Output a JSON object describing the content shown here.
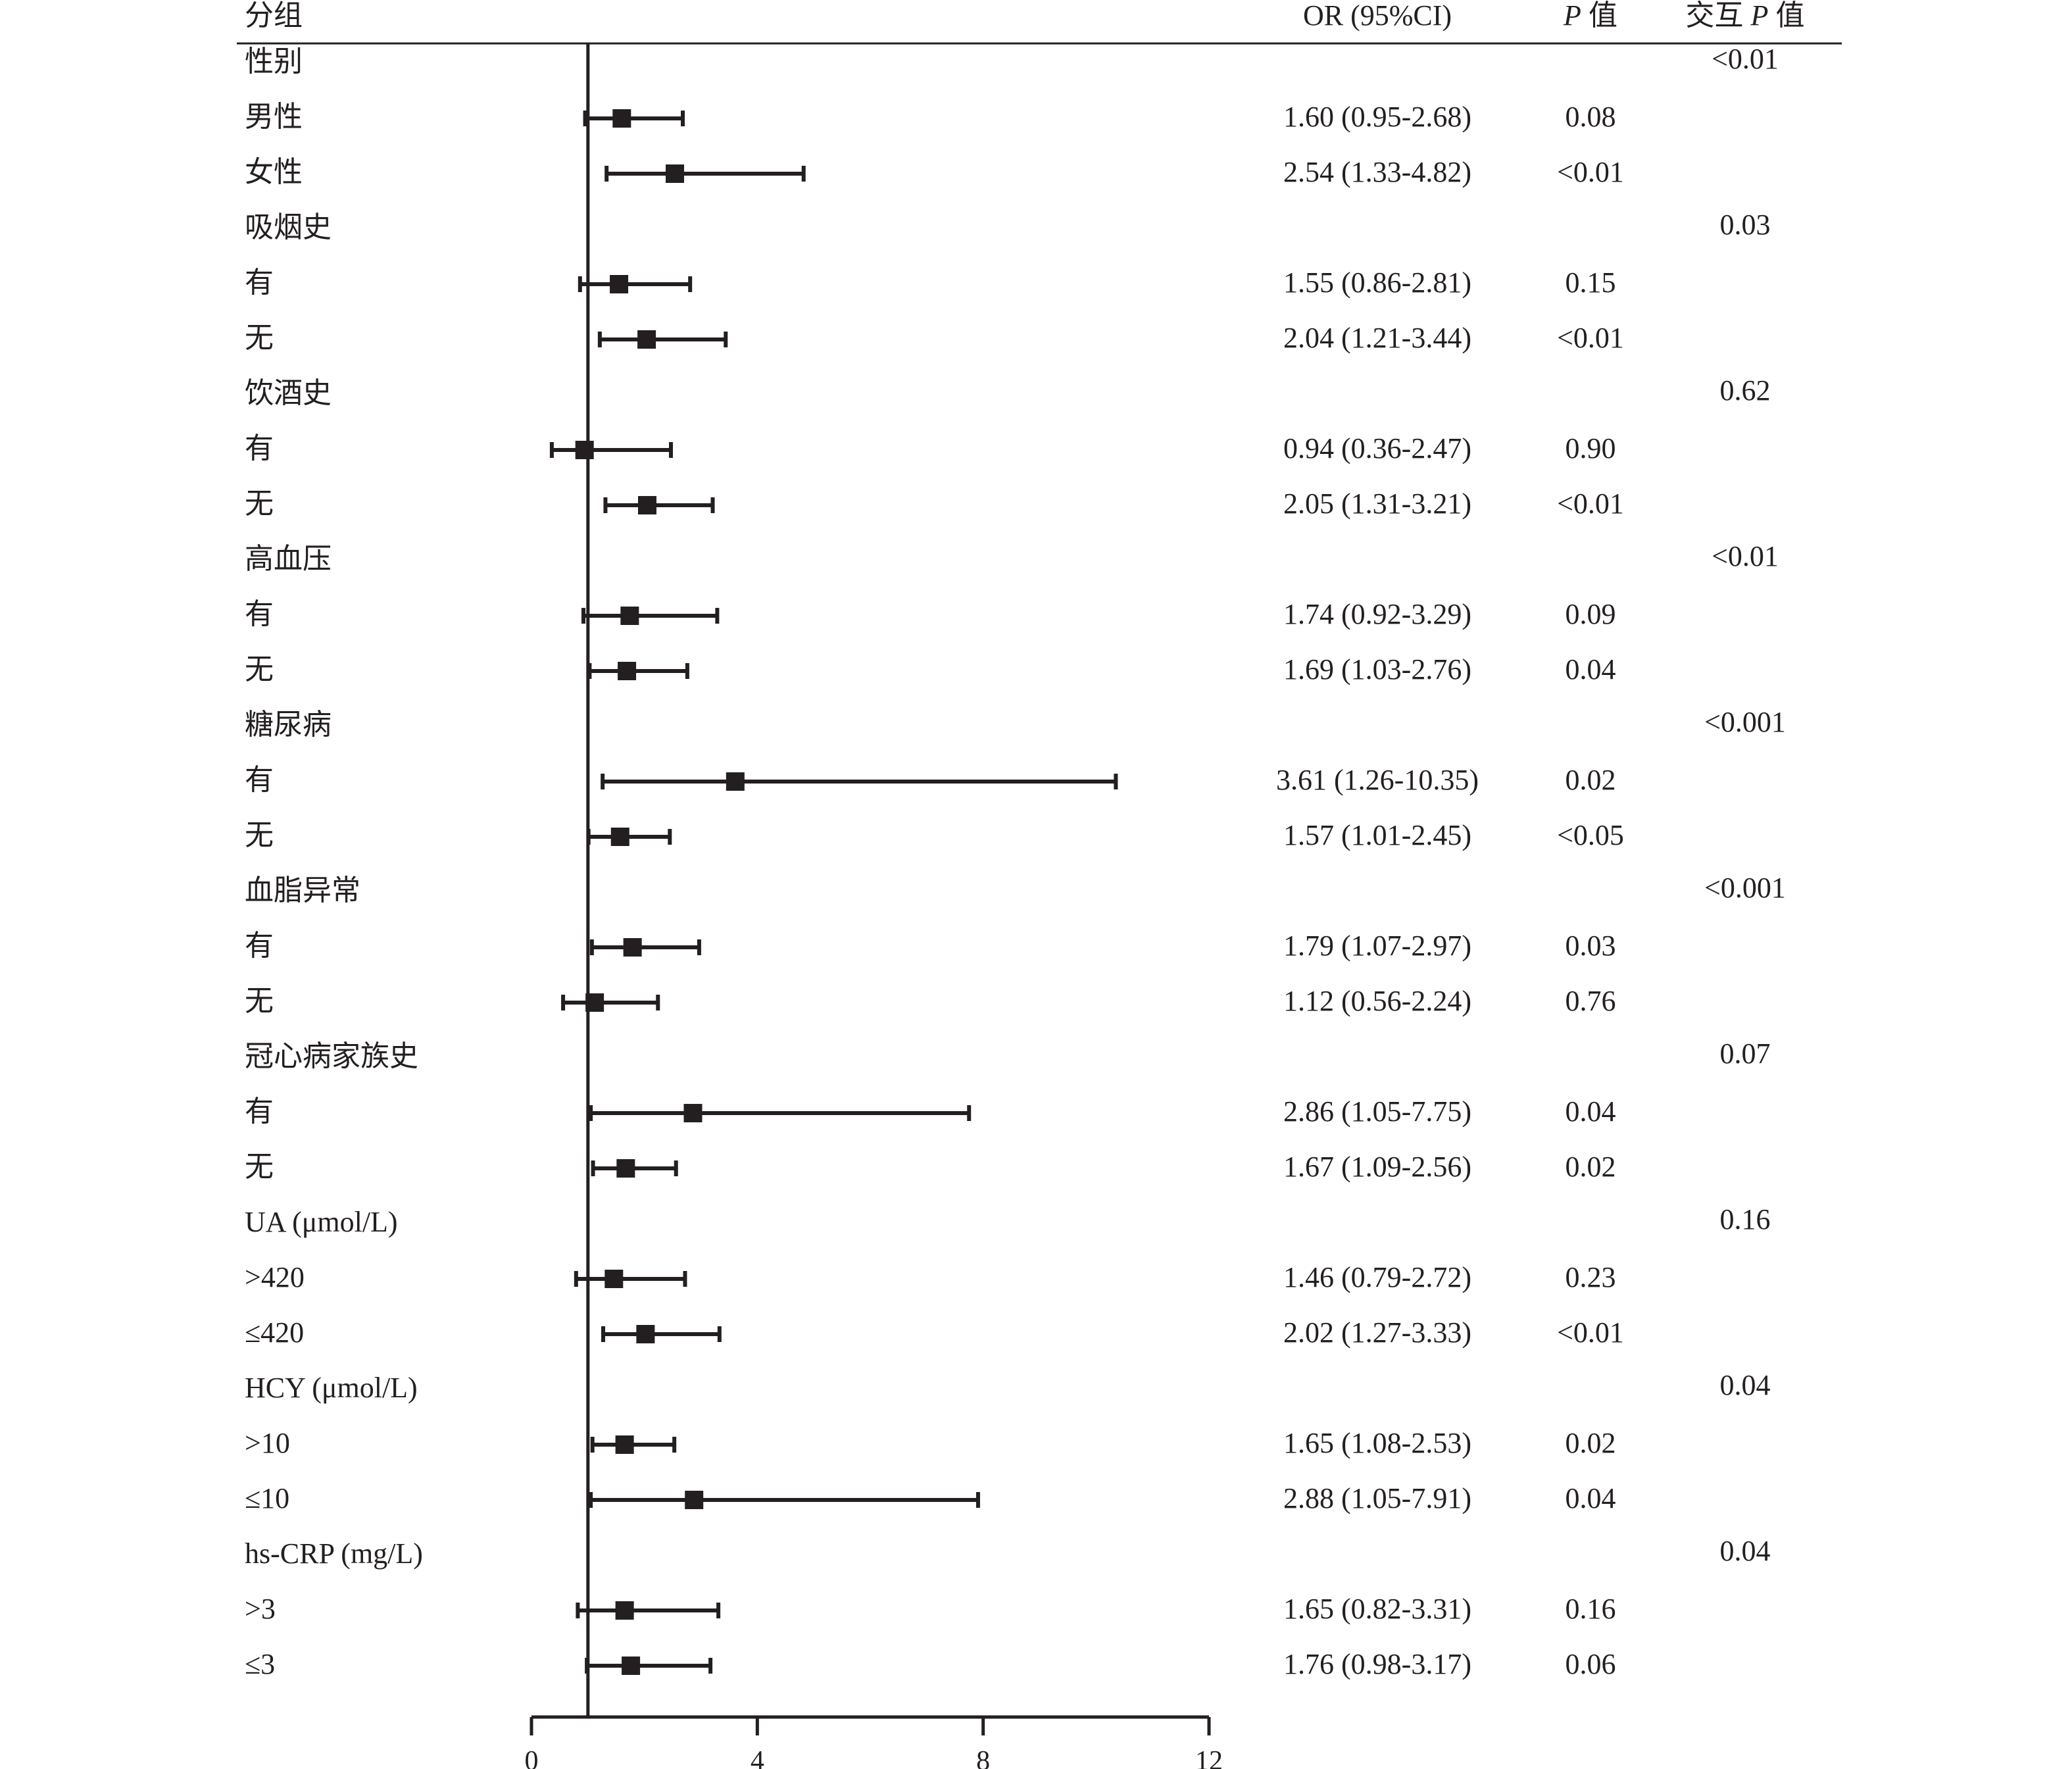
{
  "chart_data": {
    "type": "forest",
    "reference_line": 1,
    "xlim": [
      0,
      12
    ],
    "x_ticks": [
      "0",
      "4",
      "8",
      "12"
    ],
    "headers": {
      "group": "分组",
      "or": "OR (95%CI)",
      "p_italic": "P",
      "p_suffix": " 值",
      "interaction_prefix": "交互 ",
      "interaction_italic": "P",
      "interaction_suffix": " 值"
    },
    "groups": [
      {
        "label": "性别",
        "p_interaction": "<0.01",
        "rows": [
          {
            "label": "男性",
            "or": 1.6,
            "lo": 0.95,
            "hi": 2.68,
            "text": "1.60 (0.95-2.68)",
            "p": "0.08"
          },
          {
            "label": "女性",
            "or": 2.54,
            "lo": 1.33,
            "hi": 4.82,
            "text": "2.54 (1.33-4.82)",
            "p": "<0.01"
          }
        ]
      },
      {
        "label": "吸烟史",
        "p_interaction": "0.03",
        "rows": [
          {
            "label": "有",
            "or": 1.55,
            "lo": 0.86,
            "hi": 2.81,
            "text": "1.55 (0.86-2.81)",
            "p": "0.15"
          },
          {
            "label": "无",
            "or": 2.04,
            "lo": 1.21,
            "hi": 3.44,
            "text": "2.04 (1.21-3.44)",
            "p": "<0.01"
          }
        ]
      },
      {
        "label": "饮酒史",
        "p_interaction": "0.62",
        "rows": [
          {
            "label": "有",
            "or": 0.94,
            "lo": 0.36,
            "hi": 2.47,
            "text": "0.94 (0.36-2.47)",
            "p": "0.90"
          },
          {
            "label": "无",
            "or": 2.05,
            "lo": 1.31,
            "hi": 3.21,
            "text": "2.05 (1.31-3.21)",
            "p": "<0.01"
          }
        ]
      },
      {
        "label": "高血压",
        "p_interaction": "<0.01",
        "rows": [
          {
            "label": "有",
            "or": 1.74,
            "lo": 0.92,
            "hi": 3.29,
            "text": "1.74 (0.92-3.29)",
            "p": "0.09"
          },
          {
            "label": "无",
            "or": 1.69,
            "lo": 1.03,
            "hi": 2.76,
            "text": "1.69 (1.03-2.76)",
            "p": "0.04"
          }
        ]
      },
      {
        "label": "糖尿病",
        "p_interaction": "<0.001",
        "rows": [
          {
            "label": "有",
            "or": 3.61,
            "lo": 1.26,
            "hi": 10.35,
            "text": "3.61 (1.26-10.35)",
            "p": "0.02"
          },
          {
            "label": "无",
            "or": 1.57,
            "lo": 1.01,
            "hi": 2.45,
            "text": "1.57 (1.01-2.45)",
            "p": "<0.05"
          }
        ]
      },
      {
        "label": "血脂异常",
        "p_interaction": "<0.001",
        "rows": [
          {
            "label": "有",
            "or": 1.79,
            "lo": 1.07,
            "hi": 2.97,
            "text": "1.79 (1.07-2.97)",
            "p": "0.03"
          },
          {
            "label": "无",
            "or": 1.12,
            "lo": 0.56,
            "hi": 2.24,
            "text": "1.12 (0.56-2.24)",
            "p": "0.76"
          }
        ]
      },
      {
        "label": "冠心病家族史",
        "p_interaction": "0.07",
        "rows": [
          {
            "label": "有",
            "or": 2.86,
            "lo": 1.05,
            "hi": 7.75,
            "text": "2.86 (1.05-7.75)",
            "p": "0.04"
          },
          {
            "label": "无",
            "or": 1.67,
            "lo": 1.09,
            "hi": 2.56,
            "text": "1.67 (1.09-2.56)",
            "p": "0.02"
          }
        ]
      },
      {
        "label": "UA (μmol/L)",
        "p_interaction": "0.16",
        "rows": [
          {
            "label": ">420",
            "or": 1.46,
            "lo": 0.79,
            "hi": 2.72,
            "text": "1.46 (0.79-2.72)",
            "p": "0.23"
          },
          {
            "label": "≤420",
            "or": 2.02,
            "lo": 1.27,
            "hi": 3.33,
            "text": "2.02 (1.27-3.33)",
            "p": "<0.01"
          }
        ]
      },
      {
        "label": "HCY (μmol/L)",
        "p_interaction": "0.04",
        "rows": [
          {
            "label": ">10",
            "or": 1.65,
            "lo": 1.08,
            "hi": 2.53,
            "text": "1.65 (1.08-2.53)",
            "p": "0.02"
          },
          {
            "label": "≤10",
            "or": 2.88,
            "lo": 1.05,
            "hi": 7.91,
            "text": "2.88 (1.05-7.91)",
            "p": "0.04"
          }
        ]
      },
      {
        "label": "hs-CRP (mg/L)",
        "p_interaction": "0.04",
        "rows": [
          {
            "label": ">3",
            "or": 1.65,
            "lo": 0.82,
            "hi": 3.31,
            "text": "1.65 (0.82-3.31)",
            "p": "0.16"
          },
          {
            "label": "≤3",
            "or": 1.76,
            "lo": 0.98,
            "hi": 3.17,
            "text": "1.76 (0.98-3.17)",
            "p": "0.06"
          }
        ]
      }
    ]
  }
}
